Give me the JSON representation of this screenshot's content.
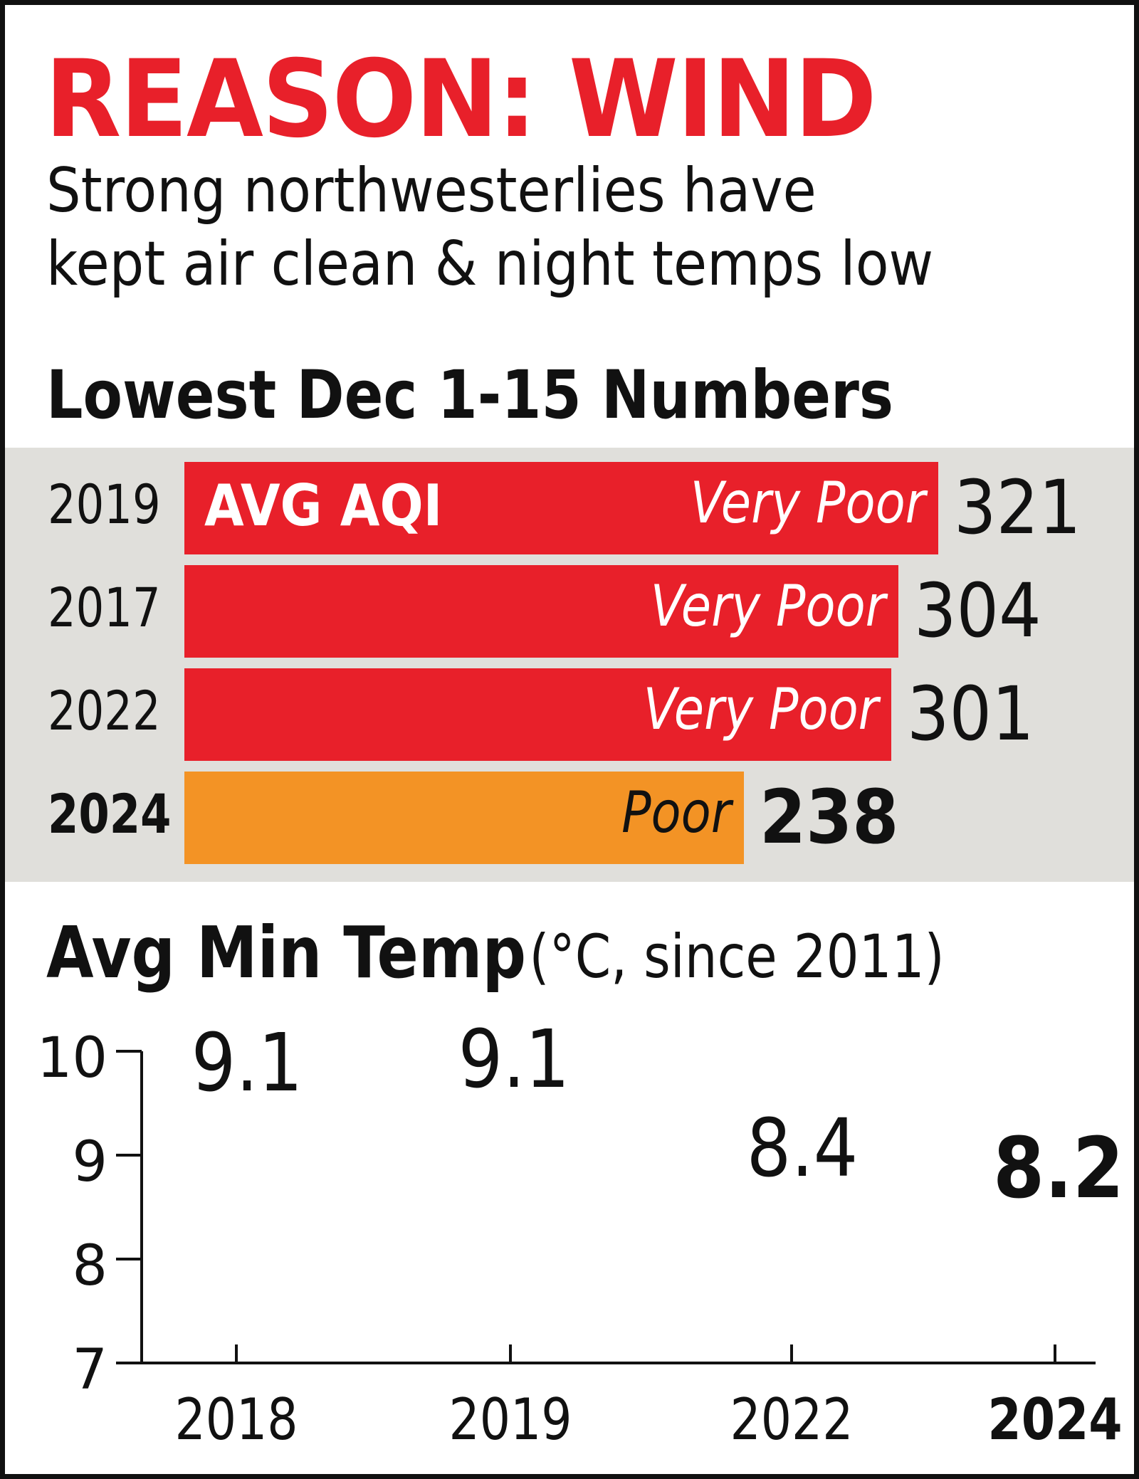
{
  "header": {
    "headline": "REASON: WIND",
    "subhead_line1": "Strong northwesterlies have",
    "subhead_line2": "kept air clean & night temps low"
  },
  "colors": {
    "very_poor": "#e8202a",
    "poor": "#f39325",
    "line": "#00b7c7",
    "panel": "#e0dfdb",
    "headline": "#e8202a"
  },
  "chart_data": [
    {
      "type": "bar",
      "title": "Lowest Dec 1-15 Numbers",
      "orientation": "horizontal",
      "series_label": "AVG AQI",
      "categories": [
        "2019",
        "2017",
        "2022",
        "2024"
      ],
      "values": [
        321,
        304,
        301,
        238
      ],
      "bar_labels": [
        "Very Poor",
        "Very Poor",
        "Very Poor",
        "Poor"
      ],
      "bar_colors": [
        "#e8202a",
        "#e8202a",
        "#e8202a",
        "#f39325"
      ],
      "highlight": "2024"
    },
    {
      "type": "line",
      "title": "Avg Min Temp",
      "title_unit": "(°C, since 2011)",
      "categories": [
        "2018",
        "2019",
        "2022",
        "2024"
      ],
      "values": [
        9.1,
        9.1,
        8.4,
        8.2
      ],
      "value_labels": [
        "9.1",
        "9.1",
        "8.4",
        "8.2"
      ],
      "y_ticks": [
        "10",
        "9",
        "8",
        "7"
      ],
      "ylim": [
        7,
        10
      ],
      "grid": false,
      "highlight": "2024"
    }
  ]
}
